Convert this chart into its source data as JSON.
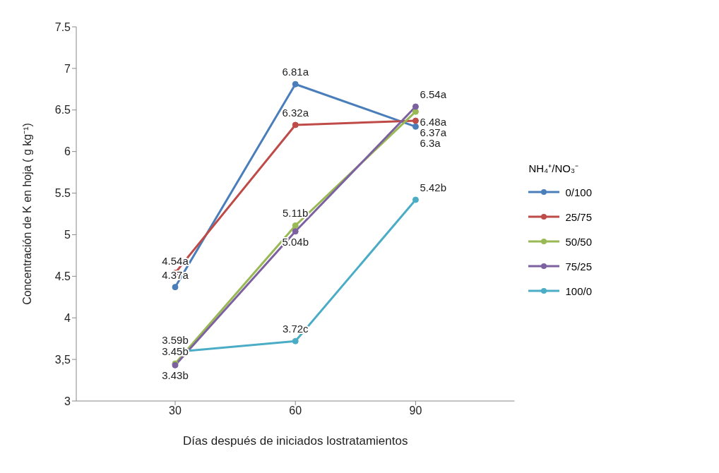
{
  "chart_data": {
    "type": "line",
    "xlabel": "Días después de iniciados lostratamientos",
    "ylabel": "Concentración de K en hoja ( g kg⁻¹)",
    "legend_title": "NH₄⁺/NO₃⁻",
    "categories": [
      "30",
      "60",
      "90"
    ],
    "ylim": [
      3,
      7.5
    ],
    "yticks": [
      3,
      {
        "value": 3.5,
        "label": "3,5"
      },
      4,
      4.5,
      5,
      5.5,
      6,
      6.5,
      7,
      7.5
    ],
    "grid": false,
    "legend": "right",
    "marker": "circle",
    "line_style": "solid",
    "series": [
      {
        "name": "0/100",
        "color": "#4a7ebb",
        "values": [
          4.37,
          6.81,
          6.3
        ],
        "value_labels": [
          "4.37a",
          "6.81a",
          "6.3a"
        ]
      },
      {
        "name": "25/75",
        "color": "#be4b48",
        "values": [
          4.54,
          6.32,
          6.37
        ],
        "value_labels": [
          "4.54a",
          "6.32a",
          "6.37a"
        ]
      },
      {
        "name": "50/50",
        "color": "#98b954",
        "values": [
          3.45,
          5.11,
          6.48
        ],
        "value_labels": [
          "3.45b",
          "5.11b",
          "6.48a"
        ]
      },
      {
        "name": "75/25",
        "color": "#7d60a0",
        "values": [
          3.43,
          5.04,
          6.54
        ],
        "value_labels": [
          "3.43b",
          "5.04b",
          "6.54a"
        ]
      },
      {
        "name": "100/0",
        "color": "#4bacc6",
        "values": [
          3.59,
          3.72,
          5.42
        ],
        "value_labels": [
          "3.59b",
          "3.72c",
          "5.42b"
        ]
      }
    ]
  }
}
